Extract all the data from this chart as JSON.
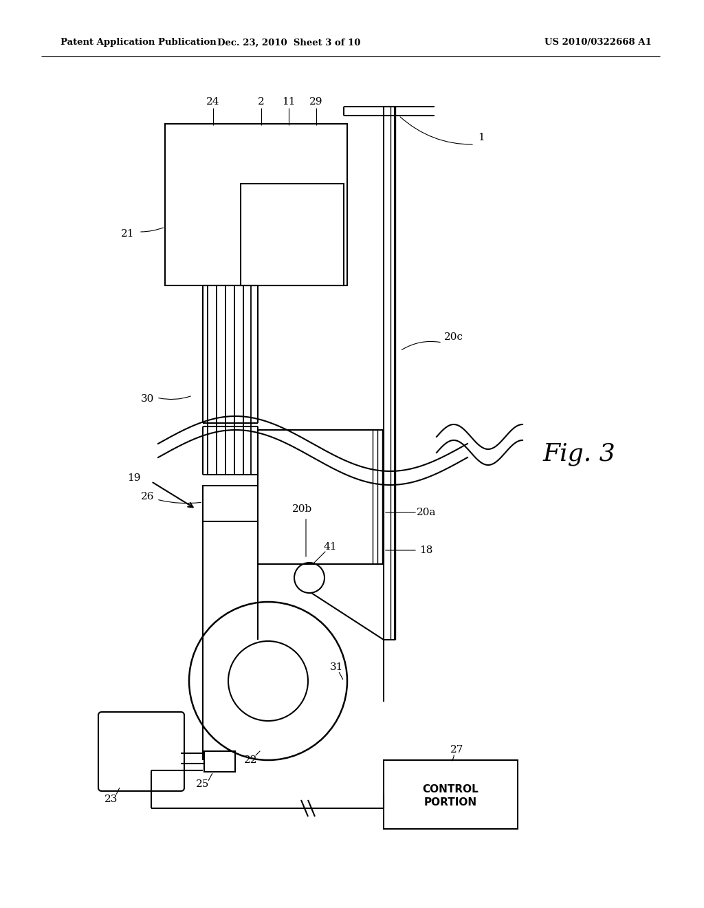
{
  "bg_color": "#ffffff",
  "line_color": "#000000",
  "header_left": "Patent Application Publication",
  "header_mid": "Dec. 23, 2010  Sheet 3 of 10",
  "header_right": "US 2010/0322668 A1",
  "fig_label": "Fig. 3"
}
